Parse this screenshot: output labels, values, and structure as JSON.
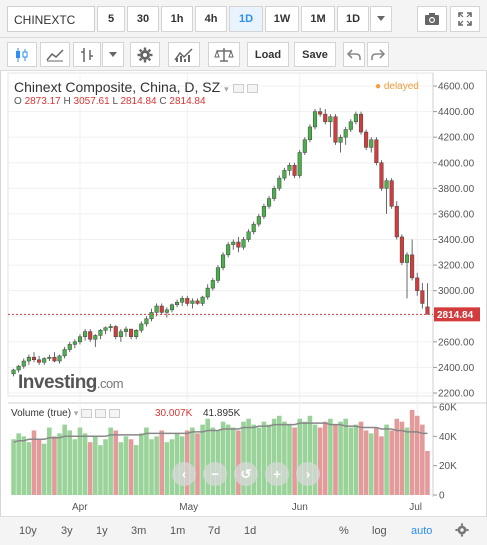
{
  "toolbar": {
    "symbol": "CHINEXTC",
    "intervals": [
      "5",
      "30",
      "1h",
      "4h",
      "1D",
      "1W",
      "1M",
      "1D"
    ],
    "active_interval": "1D",
    "load_label": "Load",
    "save_label": "Save"
  },
  "chart": {
    "title": "Chinext Composite, China, D, SZ",
    "ohlc": {
      "o_label": "O",
      "o": "2873.17",
      "h_label": "H",
      "h": "3057.61",
      "l_label": "L",
      "l": "2814.84",
      "c_label": "C",
      "c": "2814.84"
    },
    "delayed": "delayed",
    "last_price": "2814.84",
    "brand": "Investing",
    "brand_suffix": ".com"
  },
  "volume": {
    "label": "Volume (true)",
    "value": "30.007K",
    "ma_value": "41.895K"
  },
  "price_axis": [
    "4600.00",
    "4400.00",
    "4200.00",
    "4000.00",
    "3800.00",
    "3600.00",
    "3400.00",
    "3200.00",
    "3000.00",
    "2800.00",
    "2600.00",
    "2400.00",
    "2200.00"
  ],
  "volume_axis": [
    "60K",
    "40K",
    "20K",
    "0"
  ],
  "time_axis": [
    "Apr",
    "May",
    "Jun",
    "Jul"
  ],
  "bottombar": {
    "ranges": [
      "10y",
      "3y",
      "1y",
      "3m",
      "1m",
      "7d",
      "1d"
    ],
    "percent": "%",
    "log": "log",
    "auto": "auto"
  },
  "colors": {
    "up": "#4ab04a",
    "down": "#d33c3c",
    "up_vol": "#9ad39a",
    "down_vol": "#e39a9a",
    "ma": "#888888",
    "price_line": "#d33c3c",
    "accent": "#2b8ef0"
  },
  "chart_data": {
    "type": "candlestick",
    "title": "Chinext Composite, China, D, SZ",
    "ylim": [
      2200,
      4600
    ],
    "candles": [
      [
        2350,
        2390,
        2330,
        2380
      ],
      [
        2380,
        2420,
        2360,
        2410
      ],
      [
        2410,
        2470,
        2390,
        2450
      ],
      [
        2450,
        2500,
        2420,
        2480
      ],
      [
        2480,
        2520,
        2440,
        2460
      ],
      [
        2460,
        2490,
        2420,
        2440
      ],
      [
        2440,
        2480,
        2420,
        2470
      ],
      [
        2470,
        2500,
        2450,
        2480
      ],
      [
        2480,
        2520,
        2440,
        2450
      ],
      [
        2450,
        2500,
        2430,
        2490
      ],
      [
        2490,
        2560,
        2470,
        2540
      ],
      [
        2540,
        2600,
        2520,
        2580
      ],
      [
        2580,
        2620,
        2550,
        2600
      ],
      [
        2600,
        2660,
        2580,
        2640
      ],
      [
        2640,
        2700,
        2610,
        2680
      ],
      [
        2680,
        2700,
        2600,
        2620
      ],
      [
        2620,
        2660,
        2560,
        2650
      ],
      [
        2650,
        2700,
        2620,
        2690
      ],
      [
        2690,
        2720,
        2660,
        2710
      ],
      [
        2710,
        2740,
        2680,
        2720
      ],
      [
        2720,
        2730,
        2620,
        2640
      ],
      [
        2640,
        2700,
        2600,
        2680
      ],
      [
        2680,
        2720,
        2640,
        2700
      ],
      [
        2700,
        2700,
        2620,
        2640
      ],
      [
        2640,
        2700,
        2620,
        2690
      ],
      [
        2690,
        2760,
        2670,
        2740
      ],
      [
        2740,
        2800,
        2720,
        2780
      ],
      [
        2780,
        2860,
        2760,
        2830
      ],
      [
        2830,
        2900,
        2800,
        2880
      ],
      [
        2880,
        2900,
        2810,
        2830
      ],
      [
        2830,
        2870,
        2790,
        2850
      ],
      [
        2850,
        2900,
        2830,
        2890
      ],
      [
        2890,
        2930,
        2870,
        2910
      ],
      [
        2910,
        2960,
        2880,
        2940
      ],
      [
        2940,
        2960,
        2880,
        2900
      ],
      [
        2900,
        2940,
        2860,
        2920
      ],
      [
        2920,
        2940,
        2890,
        2900
      ],
      [
        2900,
        2960,
        2880,
        2950
      ],
      [
        2950,
        3050,
        2930,
        3020
      ],
      [
        3020,
        3100,
        3000,
        3080
      ],
      [
        3080,
        3200,
        3060,
        3180
      ],
      [
        3180,
        3300,
        3160,
        3280
      ],
      [
        3280,
        3380,
        3260,
        3360
      ],
      [
        3360,
        3400,
        3320,
        3380
      ],
      [
        3380,
        3420,
        3300,
        3340
      ],
      [
        3340,
        3420,
        3320,
        3400
      ],
      [
        3400,
        3480,
        3380,
        3460
      ],
      [
        3460,
        3540,
        3440,
        3520
      ],
      [
        3520,
        3600,
        3500,
        3580
      ],
      [
        3580,
        3680,
        3560,
        3660
      ],
      [
        3660,
        3740,
        3640,
        3720
      ],
      [
        3720,
        3820,
        3700,
        3800
      ],
      [
        3800,
        3900,
        3780,
        3880
      ],
      [
        3880,
        3960,
        3860,
        3940
      ],
      [
        3940,
        4000,
        3900,
        3980
      ],
      [
        3980,
        4000,
        3880,
        3900
      ],
      [
        3900,
        4100,
        3880,
        4080
      ],
      [
        4080,
        4200,
        4060,
        4180
      ],
      [
        4180,
        4300,
        4160,
        4280
      ],
      [
        4280,
        4420,
        4260,
        4400
      ],
      [
        4400,
        4430,
        4360,
        4380
      ],
      [
        4380,
        4420,
        4300,
        4320
      ],
      [
        4320,
        4380,
        4200,
        4360
      ],
      [
        4360,
        4380,
        4140,
        4160
      ],
      [
        4160,
        4220,
        4080,
        4200
      ],
      [
        4200,
        4280,
        4140,
        4260
      ],
      [
        4260,
        4340,
        4240,
        4320
      ],
      [
        4320,
        4400,
        4300,
        4380
      ],
      [
        4380,
        4400,
        4220,
        4240
      ],
      [
        4240,
        4260,
        4100,
        4120
      ],
      [
        4120,
        4200,
        4080,
        4180
      ],
      [
        4180,
        4200,
        3980,
        4000
      ],
      [
        4000,
        4020,
        3780,
        3800
      ],
      [
        3800,
        3880,
        3600,
        3860
      ],
      [
        3860,
        3880,
        3640,
        3660
      ],
      [
        3660,
        3700,
        3400,
        3420
      ],
      [
        3420,
        3440,
        3200,
        3220
      ],
      [
        3220,
        3300,
        2940,
        3280
      ],
      [
        3280,
        3400,
        3080,
        3100
      ],
      [
        3100,
        3140,
        2960,
        3000
      ],
      [
        3000,
        3060,
        2860,
        2900
      ],
      [
        2873,
        3058,
        2815,
        2815
      ]
    ],
    "volume": [
      38,
      42,
      40,
      36,
      44,
      38,
      35,
      46,
      40,
      42,
      48,
      44,
      38,
      46,
      42,
      36,
      40,
      34,
      38,
      46,
      44,
      36,
      40,
      38,
      34,
      42,
      46,
      38,
      40,
      44,
      36,
      38,
      42,
      40,
      44,
      46,
      42,
      48,
      52,
      46,
      44,
      50,
      48,
      46,
      44,
      50,
      52,
      48,
      46,
      50,
      48,
      52,
      54,
      50,
      48,
      46,
      52,
      50,
      54,
      48,
      46,
      50,
      52,
      48,
      50,
      52,
      46,
      48,
      50,
      44,
      42,
      46,
      40,
      48,
      44,
      52,
      50,
      46,
      58,
      54,
      48,
      30
    ],
    "volume_ma": [
      36,
      37,
      37,
      38,
      38,
      38,
      38,
      39,
      39,
      39,
      40,
      40,
      40,
      40,
      40,
      40,
      40,
      40,
      40,
      41,
      41,
      41,
      41,
      41,
      41,
      41,
      42,
      42,
      42,
      42,
      42,
      42,
      42,
      42,
      42,
      43,
      43,
      43,
      44,
      44,
      44,
      45,
      45,
      45,
      45,
      46,
      46,
      46,
      47,
      47,
      47,
      48,
      48,
      48,
      48,
      48,
      49,
      49,
      49,
      49,
      49,
      49,
      48,
      48,
      48,
      47,
      47,
      47,
      46,
      46,
      46,
      46,
      45,
      45,
      45,
      44,
      44,
      43,
      43,
      43,
      42,
      42
    ],
    "xlabels": [
      "Apr",
      "May",
      "Jun",
      "Jul"
    ]
  }
}
